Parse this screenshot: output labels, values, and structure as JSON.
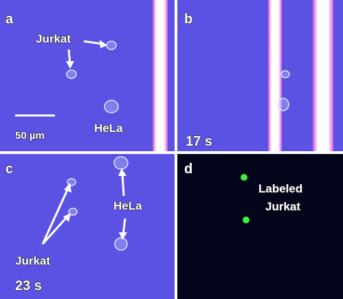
{
  "panels": [
    {
      "label": "a",
      "annotations": [
        "Jurkat",
        "HeLa"
      ],
      "scale_bar": "50 µm"
    },
    {
      "label": "b",
      "time": "17 s"
    },
    {
      "label": "c",
      "annotations": [
        "HeLa",
        "Jurkat"
      ],
      "time": "23 s"
    },
    {
      "label": "d",
      "annotations": [
        "Labeled",
        "Jurkat"
      ]
    }
  ]
}
